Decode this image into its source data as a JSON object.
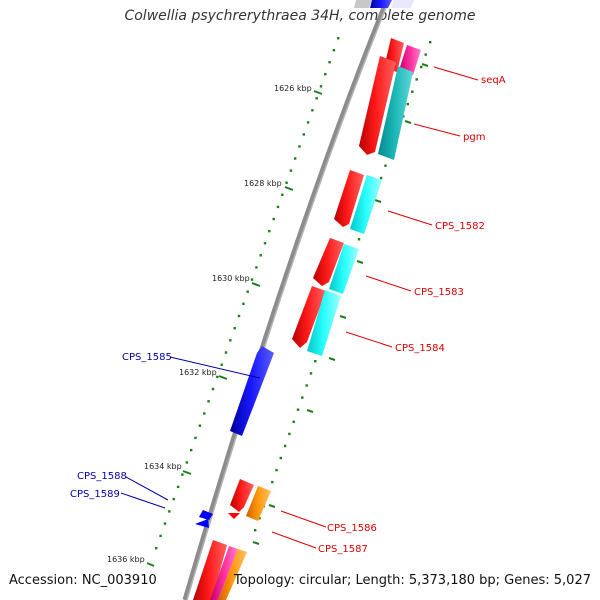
{
  "title": "Colwellia psychrerythraea 34H, complete genome",
  "accession": "Accession: NC_003910",
  "topology": "Topology: circular; Length: 5,373,180 bp; Genes: 5,027",
  "colors": {
    "backbone": "#8c8c8c",
    "tick": "#1a7f1a",
    "forward_cds": "#ff0000",
    "forward_alt": "#00ffff",
    "reverse_cds": "#0000ff",
    "forward_label": "#dd0000",
    "reverse_label": "#0000aa",
    "orange_gene": "#ff8c00",
    "magenta_gene": "#ff2fa0"
  },
  "ticks": [
    {
      "label": "1626 kbp"
    },
    {
      "label": "1628 kbp"
    },
    {
      "label": "1630 kbp"
    },
    {
      "label": "1632 kbp"
    },
    {
      "label": "1634 kbp"
    },
    {
      "label": "1636 kbp"
    }
  ],
  "forward_genes": [
    {
      "label": "seqA"
    },
    {
      "label": "pgm"
    },
    {
      "label": "CPS_1582"
    },
    {
      "label": "CPS_1583"
    },
    {
      "label": "CPS_1584"
    },
    {
      "label": "CPS_1586"
    },
    {
      "label": "CPS_1587"
    }
  ],
  "reverse_genes": [
    {
      "label": "CPS_1585"
    },
    {
      "label": "CPS_1588"
    },
    {
      "label": "CPS_1589"
    }
  ]
}
